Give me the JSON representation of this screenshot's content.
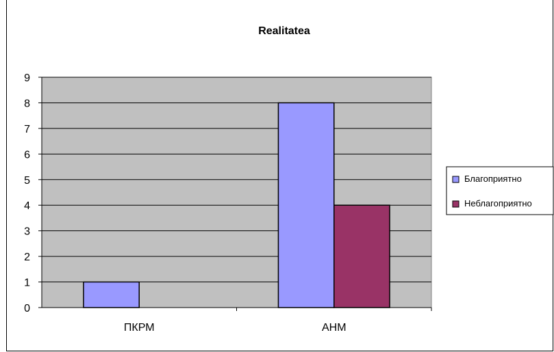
{
  "chart_data": {
    "type": "bar",
    "title": "Realitatea",
    "xlabel": "",
    "ylabel": "",
    "categories": [
      "ПКРМ",
      "АНМ"
    ],
    "series": [
      {
        "name": "Благоприятно",
        "values": [
          1,
          8
        ],
        "color": "#9999ff"
      },
      {
        "name": "Неблагоприятно",
        "values": [
          0,
          4
        ],
        "color": "#993366"
      }
    ],
    "ylim": [
      0,
      9
    ],
    "yticks": [
      0,
      1,
      2,
      3,
      4,
      5,
      6,
      7,
      8,
      9
    ],
    "grid": true,
    "plot_background": "#c0c0c0",
    "legend_position": "right"
  }
}
